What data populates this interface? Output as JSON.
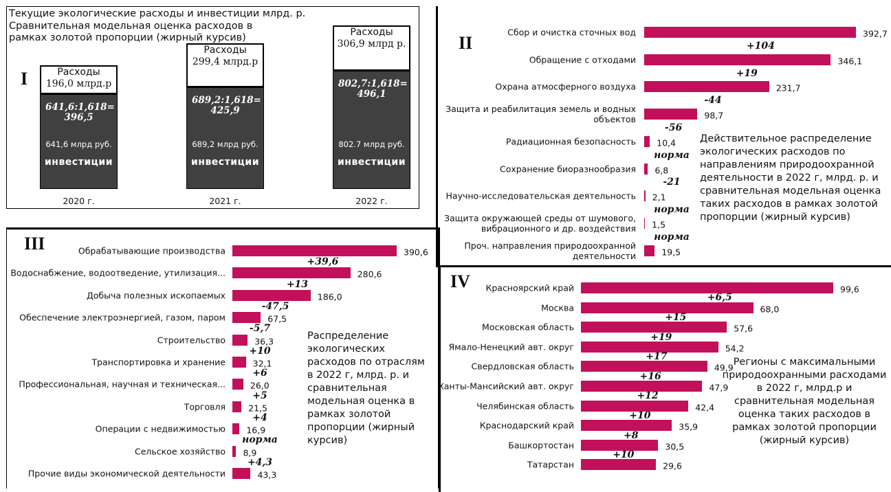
{
  "chart_data": [
    {
      "type": "stacked_bar",
      "label": "I",
      "title": "Текущие экологические расходы и инвестиции млрд. р.",
      "subtitle": "Сравнительная модельная оценка  расходов в рамках золотой пропорции (жирный курсив)",
      "categories": [
        "2020 г.",
        "2021 г.",
        "2022 г."
      ],
      "series": [
        {
          "name": "инвестиции",
          "color": "#404040",
          "values": [
            641.6,
            689.2,
            802.7
          ],
          "value_labels": [
            "641,6 млрд руб.",
            "689,2 млрд руб.",
            "802.7 млрд руб."
          ]
        },
        {
          "name": "Расходы",
          "color": "#ffffff",
          "values": [
            196.0,
            299.4,
            306.9
          ],
          "value_labels": [
            "196,0  млрд.р",
            "299,4  млрд.р",
            "306,9  млрд р."
          ]
        }
      ],
      "annotations": [
        "641,6:1,618= 396,5",
        "689,2:1,618= 425,9",
        "802,7:1,618= 496,1"
      ]
    },
    {
      "type": "barh",
      "label": "II",
      "color": "#c2105a",
      "categories": [
        "Сбор и очистка сточных вод",
        "Обращение с отходами",
        "Охрана атмосферного воздуха",
        "Защита и реабилитация земель и водных объектов",
        "Радиационная безопасность",
        "Сохранение биоразнообразия",
        "Научно-исследовательская деятельность",
        "Защита окружающей среды от шумового, вибрационного и др. воздействия",
        "Проч. направления природоохранной деятельности"
      ],
      "values": [
        392.7,
        346.1,
        231.7,
        98.7,
        10.4,
        6.8,
        2.1,
        1.5,
        19.5
      ],
      "value_labels": [
        "392,7",
        "346,1",
        "231,7",
        "98,7",
        "10,4",
        "6,8",
        "2,1",
        "1,5",
        "19,5"
      ],
      "annotations": [
        "+104",
        "+19",
        "-44",
        "-56",
        "норма",
        "-21",
        "норма",
        "норма",
        null
      ],
      "note": "Действительное распределение экологических расходов по направлениям природоохранной деятельности в 2022 г, млрд. р. и сравнительная модельная оценка таких расходов в рамках золотой пропорции (жирный курсив)"
    },
    {
      "type": "barh",
      "label": "III",
      "color": "#c2105a",
      "categories": [
        "Обрабатывающие производства",
        "Водоснабжение, водоотведение, утилизация...",
        "Добыча полезных ископаемых",
        "Обеспечение электроэнергией, газом, паром",
        "Строительство",
        "Транспортировка и хранение",
        "Профессиональная, научная и техническая...",
        "Торговля",
        "Операции с недвижимостью",
        "Сельское хозяйство",
        "Прочие виды экономической деятельности"
      ],
      "values": [
        390.6,
        280.6,
        186.0,
        67.5,
        36.3,
        32.1,
        26.0,
        21.5,
        16.9,
        8.9,
        43.3
      ],
      "value_labels": [
        "390,6",
        "280,6",
        "186,0",
        "67,5",
        "36,3",
        "32,1",
        "26,0",
        "21,5",
        "16,9",
        "8,9",
        "43,3"
      ],
      "annotations": [
        "+39,6",
        "+13",
        "-47,5",
        "-5,7",
        "+10",
        "+6",
        "+5",
        "+4",
        "норма",
        "+4,3",
        null
      ],
      "note": "Распределение экологических расходов по отраслям в 2022 г, млрд. р. и сравнительная модельная оценка в рамках золотой пропорции (жирный курсив)"
    },
    {
      "type": "barh",
      "label": "IV",
      "color": "#c2105a",
      "categories": [
        "Красноярский край",
        "Москва",
        "Московская область",
        "Ямало-Ненецкий авт. округ",
        "Свердловская область",
        "Ханты-Мансийский авт. округ",
        "Челябинская область",
        "Краснодарский край",
        "Башкортостан",
        "Татарстан"
      ],
      "values": [
        99.6,
        68.0,
        57.6,
        54.2,
        49.9,
        47.9,
        42.4,
        35.9,
        30.5,
        29.6
      ],
      "value_labels": [
        "99,6",
        "68,0",
        "57,6",
        "54,2",
        "49,9",
        "47,9",
        "42,4",
        "35,9",
        "30,5",
        "29,6"
      ],
      "annotations": [
        "+6,5",
        "+15",
        "+19",
        "+17",
        "+16",
        "+12",
        "+10",
        "+8",
        "+10",
        null
      ],
      "note": "Регионы с максимальными природоохранными расходами в 2022 г, млрд.р и сравнительная модельная оценка таких расходов в рамках золотой пропорции (жирный курсив)"
    }
  ]
}
